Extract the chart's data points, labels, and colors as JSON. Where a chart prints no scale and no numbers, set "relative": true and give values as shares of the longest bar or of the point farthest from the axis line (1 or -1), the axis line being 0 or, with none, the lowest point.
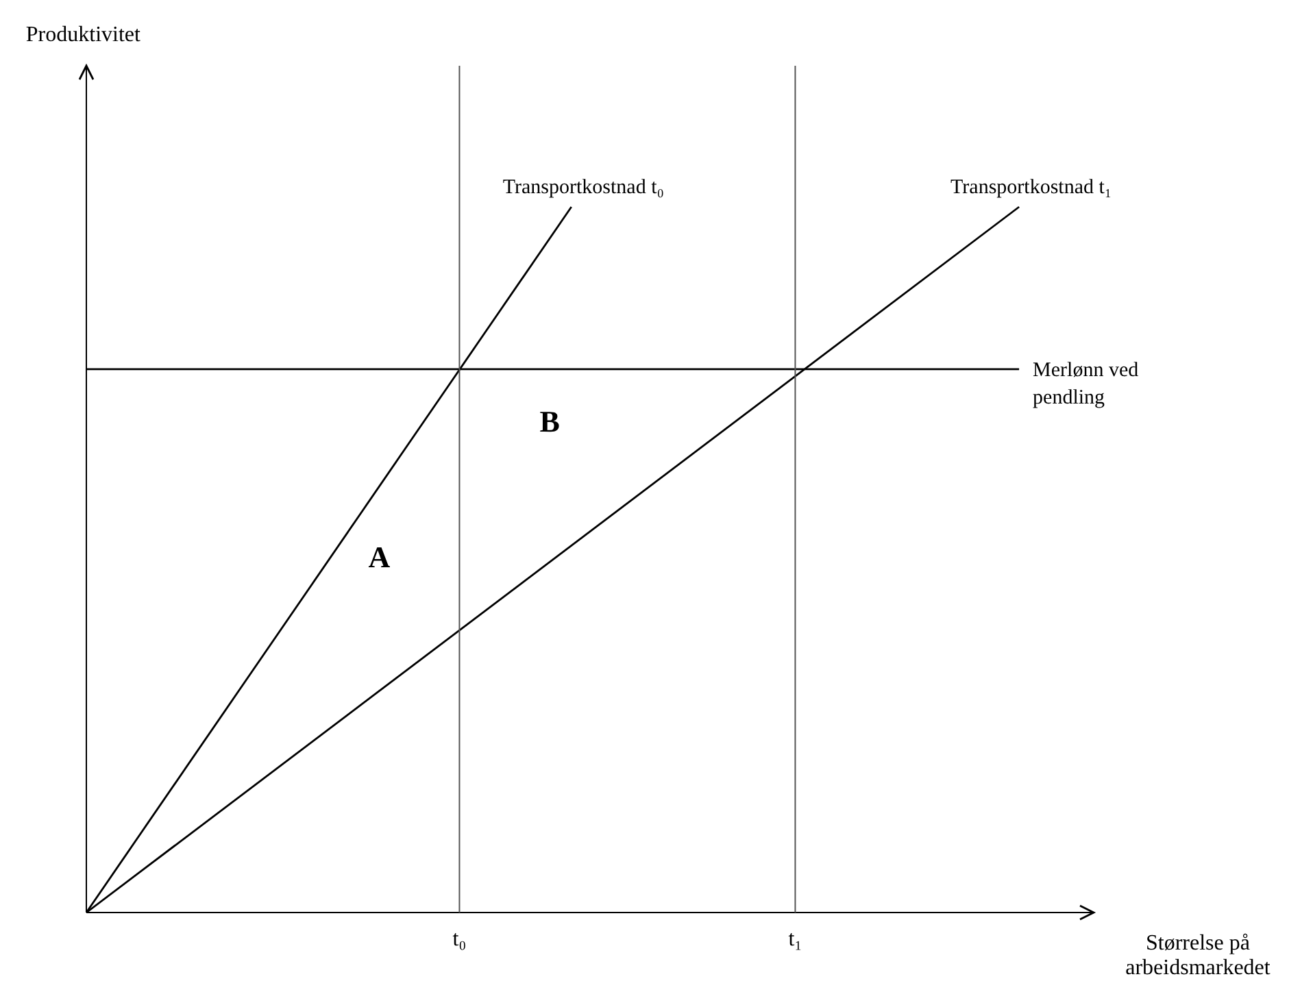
{
  "chart_data": {
    "type": "line",
    "relative": true,
    "xlabel": "Størrelse på arbeidsmarkedet",
    "categories": [
      null,
      null,
      null,
      null,
      null,
      null,
      null,
      null,
      null,
      null,
      "t₀",
      null,
      null,
      null,
      null,
      null,
      null,
      null,
      null,
      "t₁",
      null,
      null,
      null,
      null,
      null,
      null,
      null,
      null
    ],
    "tick_labels": "x",
    "grid": false,
    "legend": false,
    "marker": "none",
    "line_style": "solid",
    "series": [
      {
        "name": "Transportkostnad t₀",
        "color": "#000000",
        "values": [
          0,
          null,
          null,
          null,
          null,
          null,
          null,
          null,
          null,
          null,
          null,
          null,
          null,
          1,
          null,
          null,
          null,
          null,
          null,
          null,
          null,
          null,
          null,
          null,
          null,
          null,
          null,
          null
        ]
      },
      {
        "name": "Transportkostnad t₁",
        "color": "#000000",
        "values": [
          0,
          null,
          null,
          null,
          null,
          null,
          null,
          null,
          null,
          null,
          null,
          null,
          null,
          null,
          null,
          null,
          null,
          null,
          null,
          null,
          null,
          null,
          null,
          null,
          null,
          1,
          null,
          null
        ]
      },
      {
        "name": "Merlønn ved pendling",
        "color": "#000000",
        "values": [
          0.77,
          null,
          null,
          null,
          null,
          null,
          null,
          null,
          null,
          null,
          null,
          null,
          null,
          null,
          null,
          null,
          null,
          null,
          null,
          null,
          null,
          null,
          null,
          null,
          null,
          0.77,
          null,
          null
        ]
      }
    ],
    "ref_lines": [
      {
        "axis": "x",
        "value": "t₀",
        "color": "#555555"
      },
      {
        "axis": "x",
        "value": "t₁",
        "color": "#555555"
      }
    ],
    "annotations": [
      "A",
      "B",
      "Produktivitet"
    ]
  }
}
